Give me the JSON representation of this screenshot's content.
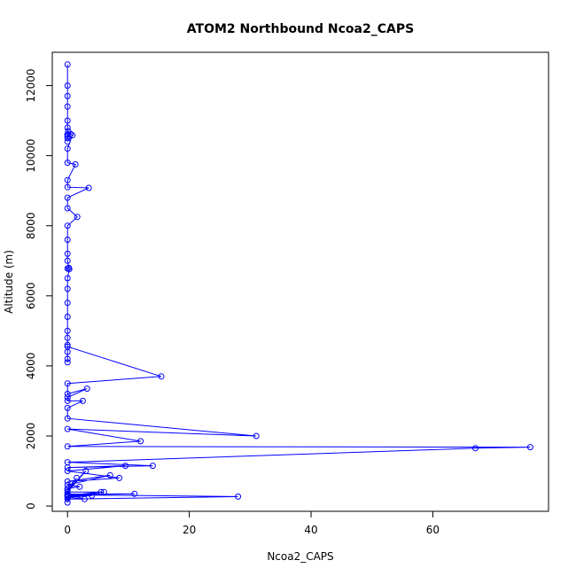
{
  "chart_data": {
    "type": "line",
    "title": "ATOM2 Northbound Ncoa2_CAPS",
    "xlabel": "Ncoa2_CAPS",
    "ylabel": "Altitude (m)",
    "xlim": [
      -2.5,
      79.0
    ],
    "ylim": [
      -150,
      12950
    ],
    "x_ticks": [
      0,
      20,
      40,
      60
    ],
    "y_ticks": [
      0,
      2000,
      4000,
      6000,
      8000,
      10000,
      12000
    ],
    "series_color": "#0000ff",
    "grid": false,
    "legend": "none",
    "series": [
      {
        "x": [
          0,
          0,
          0,
          0,
          0,
          0,
          0,
          0,
          0,
          0,
          0.1,
          0,
          0,
          0.5,
          0.8,
          0,
          0,
          1.3,
          0,
          0,
          3.5,
          0,
          0,
          1.6,
          0,
          0,
          0,
          0,
          0.2,
          0,
          0.3,
          0,
          0,
          0,
          0,
          0,
          0,
          0,
          0,
          0,
          0,
          0,
          15.4,
          0,
          0,
          3.2,
          0,
          0,
          2.5,
          0,
          0,
          31,
          0,
          12,
          0,
          76,
          67,
          0,
          14,
          0,
          9.5,
          0,
          8.5,
          0,
          7,
          0,
          2,
          0,
          1.5,
          0,
          3,
          0,
          5.5,
          0,
          6,
          0,
          4,
          0,
          2.8,
          0,
          11,
          0,
          28,
          0,
          0
        ],
        "y": [
          12600,
          12000,
          11700,
          11400,
          11000,
          10800,
          10600,
          10500,
          10400,
          10600,
          10700,
          10600,
          10550,
          10620,
          10580,
          10200,
          9800,
          9750,
          9300,
          9100,
          9080,
          8800,
          8500,
          8250,
          8000,
          7600,
          7200,
          7000,
          6800,
          6780,
          6760,
          6500,
          6200,
          5800,
          5400,
          5000,
          4800,
          4600,
          4400,
          4200,
          4100,
          4550,
          3700,
          3500,
          3200,
          3350,
          3100,
          3000,
          3000,
          2800,
          2500,
          2000,
          2200,
          1850,
          1700,
          1680,
          1650,
          1250,
          1150,
          1100,
          1150,
          1000,
          800,
          700,
          880,
          600,
          550,
          500,
          800,
          450,
          1000,
          400,
          400,
          300,
          400,
          280,
          300,
          250,
          200,
          340,
          350,
          320,
          270,
          200,
          100
        ]
      }
    ]
  }
}
